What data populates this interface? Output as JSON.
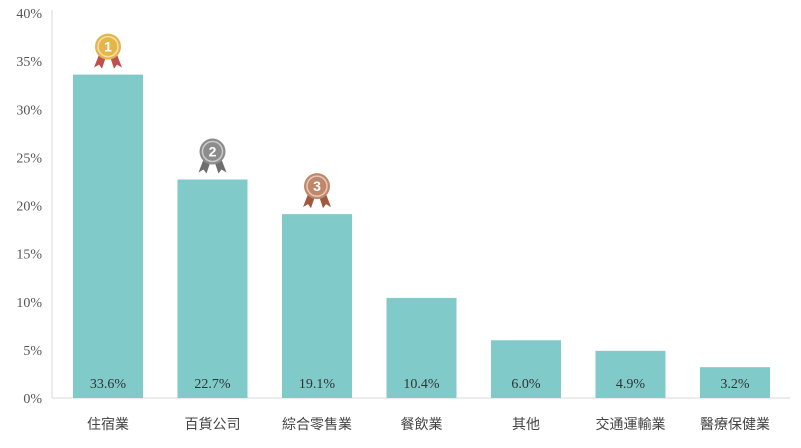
{
  "chart_data": {
    "type": "bar",
    "categories": [
      "住宿業",
      "百貨公司",
      "綜合零售業",
      "餐飲業",
      "其他",
      "交通運輸業",
      "醫療保健業"
    ],
    "values": [
      33.6,
      22.7,
      19.1,
      10.4,
      6.0,
      4.9,
      3.2
    ],
    "data_labels": [
      "33.6%",
      "22.7%",
      "19.1%",
      "10.4%",
      "6.0%",
      "4.9%",
      "3.2%"
    ],
    "y_ticks": [
      "0%",
      "5%",
      "10%",
      "15%",
      "20%",
      "25%",
      "30%",
      "35%",
      "40%"
    ],
    "ylim": [
      0,
      40
    ],
    "grid": false,
    "bar_color": "#80CACA",
    "axis_color": "#D9D9D9",
    "medals": [
      {
        "rank": "1",
        "category_index": 0,
        "color": "#E4B54A",
        "ribbon_color": "#C0504D"
      },
      {
        "rank": "2",
        "category_index": 1,
        "color": "#8C8C8C",
        "ribbon_color": "#6E6E6E"
      },
      {
        "rank": "3",
        "category_index": 2,
        "color": "#C0876A",
        "ribbon_color": "#A0583E"
      }
    ]
  }
}
